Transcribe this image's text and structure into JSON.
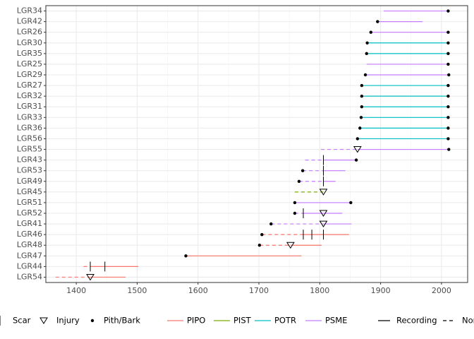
{
  "chart_data": {
    "type": "fire-history",
    "xlim": [
      1350,
      2043
    ],
    "xticks": [
      1400,
      1500,
      1600,
      1700,
      1800,
      1900,
      2000
    ],
    "minor_xticks": [
      1450,
      1550,
      1650,
      1750,
      1850,
      1950
    ],
    "grid": true,
    "species": [
      {
        "name": "PIPO",
        "color": "#F8766D"
      },
      {
        "name": "PIST",
        "color": "#7CAE00"
      },
      {
        "name": "POTR",
        "color": "#00BFC4"
      },
      {
        "name": "PSME",
        "color": "#C77CFF"
      }
    ],
    "symbols": [
      "Scar",
      "Injury",
      "Pith/Bark"
    ],
    "line_types": [
      "Recording",
      "Non-recording"
    ],
    "trees": [
      {
        "name": "LGR34",
        "species": "PSME",
        "recording": [
          [
            1905,
            2011
          ]
        ],
        "non_recording": [],
        "pith_bark": [
          2011
        ],
        "scars": [],
        "injuries": []
      },
      {
        "name": "LGR42",
        "species": "PSME",
        "recording": [
          [
            1895,
            1969
          ]
        ],
        "non_recording": [],
        "pith_bark": [
          1895
        ],
        "scars": [],
        "injuries": []
      },
      {
        "name": "LGR26",
        "species": "PSME",
        "recording": [
          [
            1884,
            2011
          ]
        ],
        "non_recording": [],
        "pith_bark": [
          1884,
          2011
        ],
        "scars": [],
        "injuries": []
      },
      {
        "name": "LGR30",
        "species": "POTR",
        "recording": [
          [
            1878,
            2011
          ]
        ],
        "non_recording": [],
        "pith_bark": [
          1878,
          2011
        ],
        "scars": [],
        "injuries": []
      },
      {
        "name": "LGR35",
        "species": "POTR",
        "recording": [
          [
            1877,
            2011
          ]
        ],
        "non_recording": [],
        "pith_bark": [
          1877,
          2011
        ],
        "scars": [],
        "injuries": []
      },
      {
        "name": "LGR25",
        "species": "PSME",
        "recording": [
          [
            1877,
            2011
          ]
        ],
        "non_recording": [],
        "pith_bark": [
          2011
        ],
        "scars": [],
        "injuries": []
      },
      {
        "name": "LGR29",
        "species": "PSME",
        "recording": [
          [
            1875,
            2012
          ]
        ],
        "non_recording": [],
        "pith_bark": [
          1875,
          2012
        ],
        "scars": [],
        "injuries": []
      },
      {
        "name": "LGR27",
        "species": "POTR",
        "recording": [
          [
            1869,
            2011
          ]
        ],
        "non_recording": [],
        "pith_bark": [
          1869,
          2011
        ],
        "scars": [],
        "injuries": []
      },
      {
        "name": "LGR32",
        "species": "POTR",
        "recording": [
          [
            1869,
            2011
          ]
        ],
        "non_recording": [],
        "pith_bark": [
          1869,
          2011
        ],
        "scars": [],
        "injuries": []
      },
      {
        "name": "LGR31",
        "species": "POTR",
        "recording": [
          [
            1869,
            2011
          ]
        ],
        "non_recording": [],
        "pith_bark": [
          1869,
          2011
        ],
        "scars": [],
        "injuries": []
      },
      {
        "name": "LGR33",
        "species": "POTR",
        "recording": [
          [
            1868,
            2011
          ]
        ],
        "non_recording": [],
        "pith_bark": [
          1868,
          2011
        ],
        "scars": [],
        "injuries": []
      },
      {
        "name": "LGR36",
        "species": "POTR",
        "recording": [
          [
            1866,
            2011
          ]
        ],
        "non_recording": [],
        "pith_bark": [
          1866,
          2011
        ],
        "scars": [],
        "injuries": []
      },
      {
        "name": "LGR56",
        "species": "POTR",
        "recording": [
          [
            1862,
            2011
          ]
        ],
        "non_recording": [],
        "pith_bark": [
          1862,
          2011
        ],
        "scars": [],
        "injuries": []
      },
      {
        "name": "LGR55",
        "species": "PSME",
        "recording": [
          [
            1862,
            2012
          ]
        ],
        "non_recording": [
          [
            1802,
            1862
          ]
        ],
        "pith_bark": [
          2012
        ],
        "scars": [],
        "injuries": [
          1862
        ]
      },
      {
        "name": "LGR43",
        "species": "PSME",
        "recording": [
          [
            1806,
            1860
          ]
        ],
        "non_recording": [
          [
            1776,
            1806
          ]
        ],
        "pith_bark": [
          1860
        ],
        "scars": [
          1806
        ],
        "injuries": []
      },
      {
        "name": "LGR53",
        "species": "PSME",
        "recording": [
          [
            1806,
            1842
          ]
        ],
        "non_recording": [
          [
            1772,
            1806
          ]
        ],
        "pith_bark": [
          1772
        ],
        "scars": [
          1806
        ],
        "injuries": []
      },
      {
        "name": "LGR49",
        "species": "PSME",
        "recording": [
          [
            1806,
            1826
          ]
        ],
        "non_recording": [
          [
            1766,
            1806
          ]
        ],
        "pith_bark": [
          1766
        ],
        "scars": [
          1806
        ],
        "injuries": []
      },
      {
        "name": "LGR45",
        "species": "PIST",
        "recording": [],
        "non_recording": [
          [
            1759,
            1806
          ]
        ],
        "pith_bark": [],
        "scars": [],
        "injuries": [
          1806
        ]
      },
      {
        "name": "LGR51",
        "species": "PSME",
        "recording": [
          [
            1759,
            1851
          ]
        ],
        "non_recording": [],
        "pith_bark": [
          1759,
          1851
        ],
        "scars": [],
        "injuries": []
      },
      {
        "name": "LGR52",
        "species": "PSME",
        "recording": [
          [
            1773,
            1837
          ]
        ],
        "non_recording": [
          [
            1759,
            1773
          ]
        ],
        "pith_bark": [
          1759
        ],
        "scars": [
          1773
        ],
        "injuries": [
          1806
        ]
      },
      {
        "name": "LGR41",
        "species": "PSME",
        "recording": [
          [
            1806,
            1852
          ]
        ],
        "non_recording": [
          [
            1720,
            1806
          ]
        ],
        "pith_bark": [
          1720
        ],
        "scars": [],
        "injuries": [
          1806
        ]
      },
      {
        "name": "LGR46",
        "species": "PIPO",
        "recording": [
          [
            1773,
            1848
          ]
        ],
        "non_recording": [
          [
            1705,
            1773
          ]
        ],
        "pith_bark": [
          1705
        ],
        "scars": [
          1773,
          1787,
          1806
        ],
        "injuries": []
      },
      {
        "name": "LGR48",
        "species": "PIPO",
        "recording": [
          [
            1752,
            1803
          ]
        ],
        "non_recording": [
          [
            1701,
            1752
          ]
        ],
        "pith_bark": [
          1701
        ],
        "scars": [],
        "injuries": [
          1752
        ]
      },
      {
        "name": "LGR47",
        "species": "PIPO",
        "recording": [
          [
            1580,
            1770
          ]
        ],
        "non_recording": [],
        "pith_bark": [
          1580
        ],
        "scars": [],
        "injuries": []
      },
      {
        "name": "LGR44",
        "species": "PIPO",
        "recording": [
          [
            1423,
            1502
          ]
        ],
        "non_recording": [
          [
            1412,
            1423
          ]
        ],
        "pith_bark": [],
        "scars": [
          1423,
          1447
        ],
        "injuries": []
      },
      {
        "name": "LGR54",
        "species": "PIPO",
        "recording": [
          [
            1423,
            1481
          ]
        ],
        "non_recording": [
          [
            1366,
            1423
          ]
        ],
        "pith_bark": [],
        "scars": [],
        "injuries": [
          1423
        ]
      }
    ]
  }
}
